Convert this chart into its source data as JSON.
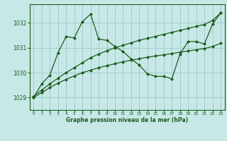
{
  "background_color": "#c8e8e8",
  "grid_color": "#a0cccc",
  "line_color": "#1a5c1a",
  "xlabel": "Graphe pression niveau de la mer (hPa)",
  "ylim": [
    1028.5,
    1032.75
  ],
  "xlim": [
    -0.5,
    23.5
  ],
  "yticks": [
    1029,
    1030,
    1031,
    1032
  ],
  "xticks": [
    0,
    1,
    2,
    3,
    4,
    5,
    6,
    7,
    8,
    9,
    10,
    11,
    12,
    13,
    14,
    15,
    16,
    17,
    18,
    19,
    20,
    21,
    22,
    23
  ],
  "series": [
    {
      "x": [
        0,
        1,
        2,
        3,
        4,
        5,
        6,
        7,
        8,
        9,
        10,
        11,
        12,
        13,
        14,
        15,
        16,
        17,
        18,
        19,
        20,
        21,
        22,
        23
      ],
      "y": [
        1029.0,
        1029.55,
        1029.9,
        1030.8,
        1031.45,
        1031.4,
        1032.05,
        1032.35,
        1031.35,
        1031.3,
        1031.05,
        1030.85,
        1030.55,
        1030.3,
        1029.95,
        1029.85,
        1029.85,
        1029.75,
        1030.75,
        1031.25,
        1031.25,
        1031.15,
        1031.95,
        1032.4
      ]
    },
    {
      "x": [
        0,
        1,
        2,
        3,
        4,
        5,
        6,
        7,
        8,
        9,
        10,
        11,
        12,
        13,
        14,
        15,
        16,
        17,
        18,
        19,
        20,
        21,
        22,
        23
      ],
      "y": [
        1029.05,
        1029.3,
        1029.55,
        1029.78,
        1030.0,
        1030.2,
        1030.4,
        1030.6,
        1030.75,
        1030.88,
        1031.0,
        1031.1,
        1031.2,
        1031.3,
        1031.38,
        1031.46,
        1031.54,
        1031.62,
        1031.7,
        1031.78,
        1031.86,
        1031.94,
        1032.1,
        1032.4
      ]
    },
    {
      "x": [
        0,
        1,
        2,
        3,
        4,
        5,
        6,
        7,
        8,
        9,
        10,
        11,
        12,
        13,
        14,
        15,
        16,
        17,
        18,
        19,
        20,
        21,
        22,
        23
      ],
      "y": [
        1029.0,
        1029.2,
        1029.4,
        1029.58,
        1029.73,
        1029.87,
        1030.0,
        1030.1,
        1030.2,
        1030.28,
        1030.36,
        1030.44,
        1030.5,
        1030.56,
        1030.62,
        1030.67,
        1030.72,
        1030.77,
        1030.82,
        1030.87,
        1030.92,
        1030.97,
        1031.05,
        1031.18
      ]
    }
  ]
}
